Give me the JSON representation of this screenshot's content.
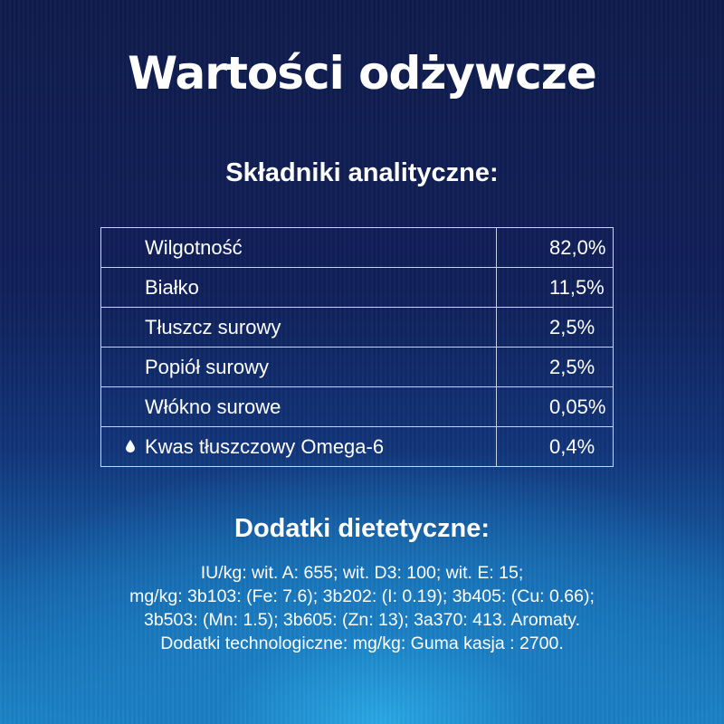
{
  "title": "Wartości odżywcze",
  "analytical": {
    "heading": "Składniki analityczne:",
    "rows": [
      {
        "name": "Wilgotność",
        "value": "82,0%"
      },
      {
        "name": "Białko",
        "value": "11,5%"
      },
      {
        "name": "Tłuszcz surowy",
        "value": "2,5%"
      },
      {
        "name": "Popiół surowy",
        "value": "2,5%"
      },
      {
        "name": "Włókno surowe",
        "value": "0,05%"
      },
      {
        "name": "Kwas tłuszczowy Omega-6",
        "value": "0,4%",
        "icon": "drop-icon"
      }
    ]
  },
  "additives": {
    "heading": "Dodatki dietetyczne:",
    "lines": [
      "IU/kg: wit. A: 655; wit. D3: 100; wit. E: 15;",
      "mg/kg: 3b103: (Fe: 7.6); 3b202: (I: 0.19); 3b405: (Cu: 0.66);",
      "3b503: (Mn: 1.5); 3b605: (Zn: 13); 3a370: 413. Aromaty.",
      "Dodatki technologiczne: mg/kg: Guma kasja : 2700."
    ]
  }
}
